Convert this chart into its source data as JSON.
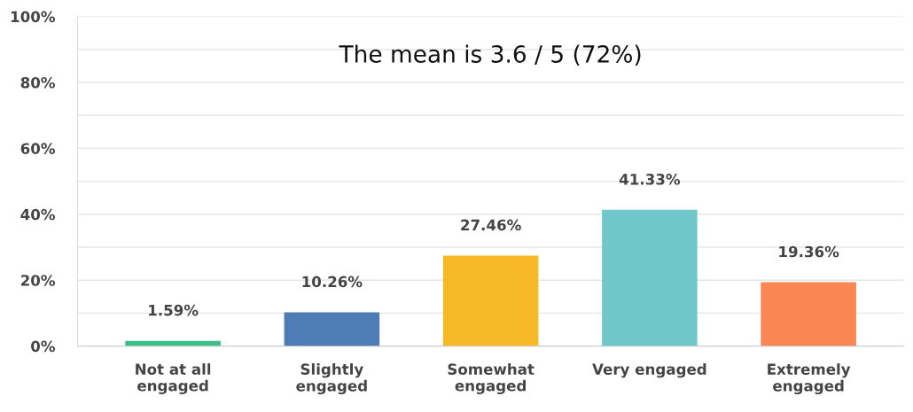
{
  "chart_data": {
    "type": "bar",
    "categories": [
      "Not at all\nengaged",
      "Slightly\nengaged",
      "Somewhat\nengaged",
      "Very engaged",
      "Extremely\nengaged"
    ],
    "values": [
      1.59,
      10.26,
      27.46,
      41.33,
      19.36
    ],
    "value_labels": [
      "1.59%",
      "10.26%",
      "27.46%",
      "41.33%",
      "19.36%"
    ],
    "colors": [
      "#3dbf8a",
      "#507cb6",
      "#f7b928",
      "#6fc7c9",
      "#fa8753"
    ],
    "ylim": [
      0,
      100
    ],
    "yticks": [
      {
        "value": 0,
        "label": "0%"
      },
      {
        "value": 10,
        "label": null
      },
      {
        "value": 20,
        "label": "20%"
      },
      {
        "value": 30,
        "label": null
      },
      {
        "value": 40,
        "label": "40%"
      },
      {
        "value": 50,
        "label": null
      },
      {
        "value": 60,
        "label": "60%"
      },
      {
        "value": 70,
        "label": null
      },
      {
        "value": 80,
        "label": "80%"
      },
      {
        "value": 90,
        "label": null
      },
      {
        "value": 100,
        "label": "100%"
      }
    ],
    "grid": "y",
    "annotations": [
      "The mean is 3.6 / 5 (72%)"
    ]
  }
}
